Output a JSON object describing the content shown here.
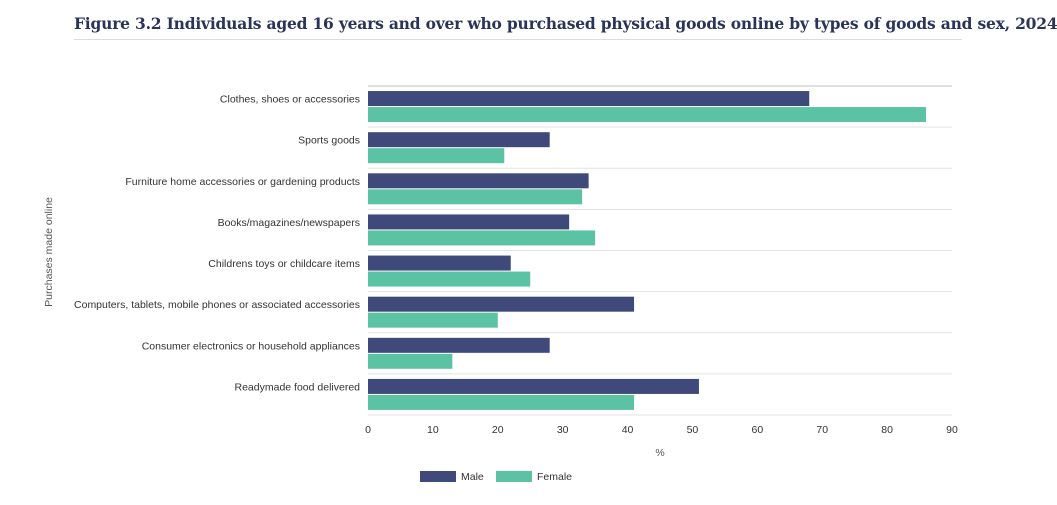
{
  "title": "Figure 3.2 Individuals aged 16 years and over who purchased physical goods online by types of goods and sex, 2024",
  "chart_data": {
    "type": "bar",
    "orientation": "horizontal",
    "categories": [
      "Clothes, shoes or accessories",
      "Sports goods",
      "Furniture home accessories or gardening products",
      "Books/magazines/newspapers",
      "Childrens toys or childcare items",
      "Computers, tablets, mobile phones or associated accessories",
      "Consumer electronics or household appliances",
      "Readymade food delivered"
    ],
    "series": [
      {
        "name": "Male",
        "color": "#3f4a7a",
        "values": [
          68,
          28,
          34,
          31,
          22,
          41,
          28,
          51
        ]
      },
      {
        "name": "Female",
        "color": "#5cc2a4",
        "values": [
          86,
          21,
          33,
          35,
          25,
          20,
          13,
          41
        ]
      }
    ],
    "xlabel": "%",
    "ylabel": "Purchases made online",
    "xlim": [
      0,
      90
    ],
    "xticks": [
      0,
      10,
      20,
      30,
      40,
      50,
      60,
      70,
      80,
      90
    ],
    "grid": "horizontal separators",
    "legend_position": "bottom"
  }
}
